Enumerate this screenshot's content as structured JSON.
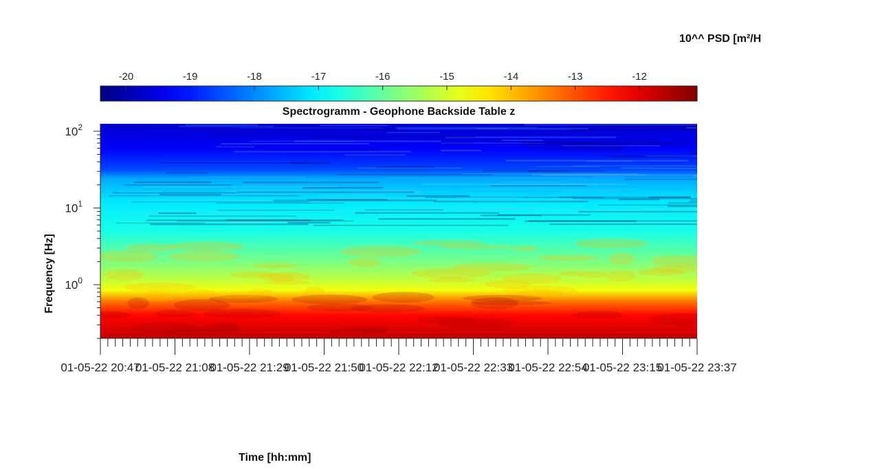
{
  "chart_data": {
    "type": "heatmap",
    "title": "Spectrogramm - Geophone Backside Table z",
    "xlabel": "Time [hh:mm]",
    "ylabel": "Frequency [Hz]",
    "y_scale": "log",
    "ylim": [
      0.2,
      125
    ],
    "y_ticks": [
      {
        "value": 1,
        "base": "10",
        "exp": "0"
      },
      {
        "value": 10,
        "base": "10",
        "exp": "1"
      },
      {
        "value": 100,
        "base": "10",
        "exp": "2"
      }
    ],
    "x_tick_labels": [
      "01-05-22 20:47",
      "01-05-22 21:08",
      "01-05-22 21:29",
      "01-05-22 21:50",
      "01-05-22 22:12",
      "01-05-22 22:33",
      "01-05-22 22:54",
      "01-05-22 23:15",
      "01-05-22 23:37"
    ],
    "colorbar": {
      "label": "10^^ PSD [m²/H",
      "colormap": "jet",
      "range": [
        -20.4,
        -11.1
      ],
      "ticks": [
        "-20",
        "-19",
        "-18",
        "-17",
        "-16",
        "-15",
        "-14",
        "-13",
        "-12"
      ]
    },
    "log10_psd_profile": [
      {
        "freq_hz": 125,
        "value": -19.7
      },
      {
        "freq_hz": 60,
        "value": -19.3
      },
      {
        "freq_hz": 32,
        "value": -18.6
      },
      {
        "freq_hz": 24,
        "value": -17.7
      },
      {
        "freq_hz": 12,
        "value": -17.1
      },
      {
        "freq_hz": 5,
        "value": -16.7
      },
      {
        "freq_hz": 3,
        "value": -16.2
      },
      {
        "freq_hz": 2,
        "value": -15.8
      },
      {
        "freq_hz": 1.2,
        "value": -15.2
      },
      {
        "freq_hz": 0.85,
        "value": -14.7
      },
      {
        "freq_hz": 0.6,
        "value": -13.3
      },
      {
        "freq_hz": 0.4,
        "value": -12.3
      },
      {
        "freq_hz": 0.2,
        "value": -11.7
      }
    ]
  }
}
